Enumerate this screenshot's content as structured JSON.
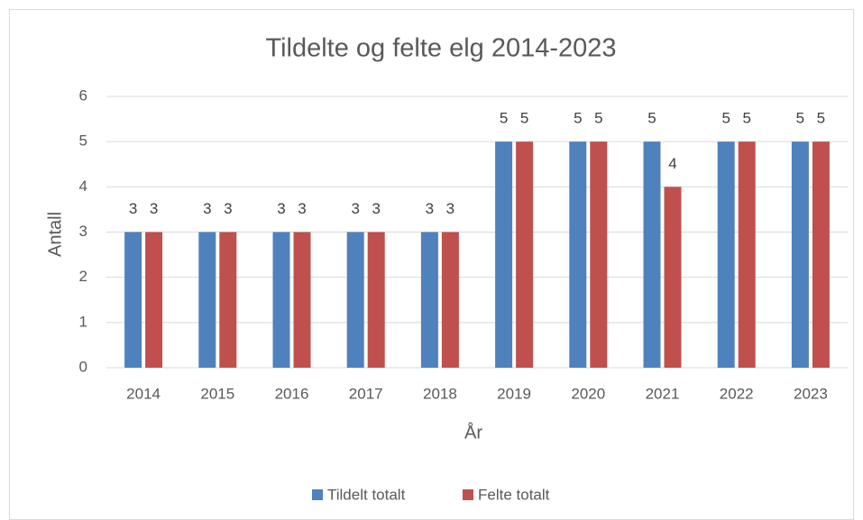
{
  "chart_data": {
    "type": "bar",
    "title": "Tildelte og felte elg 2014-2023",
    "x_label": "År",
    "y_label": "Antall",
    "categories": [
      "2014",
      "2015",
      "2016",
      "2017",
      "2018",
      "2019",
      "2020",
      "2021",
      "2022",
      "2023"
    ],
    "series": [
      {
        "name": "Tildelt totalt",
        "color": "#4f81bd",
        "values": [
          3,
          3,
          3,
          3,
          3,
          5,
          5,
          5,
          5,
          5
        ]
      },
      {
        "name": "Felte totalt",
        "color": "#c0504d",
        "values": [
          3,
          3,
          3,
          3,
          3,
          5,
          5,
          4,
          5,
          5
        ]
      }
    ],
    "ylim": [
      0,
      6
    ],
    "yticks": [
      0,
      1,
      2,
      3,
      4,
      5,
      6
    ],
    "grid": true,
    "legend": "bottom"
  }
}
